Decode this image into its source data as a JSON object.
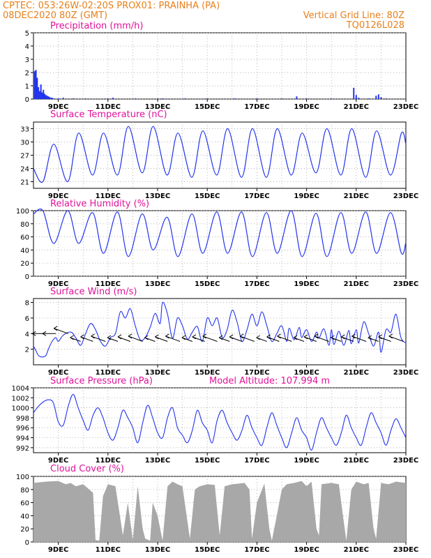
{
  "header": {
    "line1_left": "CPTEC:   053:26W-02:20S   PROX01: PRAINHA (PA)",
    "line2_left": "08DEC2020 80Z (GMT)",
    "line2_right": "Vertical Grid Line: 80Z",
    "line3_right": "TQ0126L028"
  },
  "colors": {
    "header": "#e8801a",
    "title": "#e0139a",
    "series": "#2233ee",
    "cloud": "#a8a8a8",
    "grid": "#999999"
  },
  "chart_data": [
    {
      "id": "precip",
      "type": "bar",
      "title": "Precipitation (mm/h)",
      "x_tick_labels": [
        "9DEC",
        "11DEC",
        "13DEC",
        "15DEC",
        "17DEC",
        "19DEC",
        "21DEC",
        "23DEC"
      ],
      "y_ticks": [
        0,
        1,
        2,
        3,
        4,
        5
      ],
      "ylim": [
        0,
        5
      ],
      "grid": true,
      "bars": [
        [
          0.05,
          2.1
        ],
        [
          0.1,
          2.2
        ],
        [
          0.15,
          1.6
        ],
        [
          0.2,
          0.9
        ],
        [
          0.25,
          0.6
        ],
        [
          0.3,
          1.1
        ],
        [
          0.35,
          0.5
        ],
        [
          0.4,
          0.7
        ],
        [
          0.45,
          0.4
        ],
        [
          0.5,
          0.3
        ],
        [
          0.55,
          0.25
        ],
        [
          0.6,
          0.2
        ],
        [
          0.65,
          0.15
        ],
        [
          0.7,
          0.1
        ],
        [
          0.75,
          0.1
        ],
        [
          0.8,
          0.05
        ],
        [
          1.0,
          0.05
        ],
        [
          1.2,
          0.1
        ],
        [
          1.6,
          0.05
        ],
        [
          2.1,
          0.05
        ],
        [
          3.0,
          0.05
        ],
        [
          3.2,
          0.1
        ],
        [
          4.1,
          0.05
        ],
        [
          5.0,
          0.05
        ],
        [
          5.2,
          0.05
        ],
        [
          6.1,
          0.05
        ],
        [
          7.0,
          0.05
        ],
        [
          8.1,
          0.05
        ],
        [
          9.0,
          0.05
        ],
        [
          10.0,
          0.05
        ],
        [
          10.6,
          0.2
        ],
        [
          11.0,
          0.05
        ],
        [
          12.0,
          0.05
        ],
        [
          12.9,
          0.85
        ],
        [
          13.0,
          0.3
        ],
        [
          13.1,
          0.1
        ],
        [
          13.5,
          0.05
        ],
        [
          13.8,
          0.25
        ],
        [
          13.9,
          0.35
        ],
        [
          14.0,
          0.15
        ],
        [
          14.2,
          0.05
        ]
      ]
    },
    {
      "id": "temp",
      "type": "line",
      "title": "Surface Temperature (nC)",
      "x_tick_labels": [
        "9DEC",
        "11DEC",
        "13DEC",
        "15DEC",
        "17DEC",
        "19DEC",
        "21DEC",
        "23DEC"
      ],
      "y_ticks": [
        21,
        24,
        27,
        30,
        33
      ],
      "ylim": [
        19.5,
        34.5
      ],
      "grid": true,
      "pattern": {
        "period_days": 1,
        "min_hour_frac": 0.38,
        "max_hour_frac": 0.82
      },
      "daily": [
        [
          21,
          29.5
        ],
        [
          21,
          32
        ],
        [
          22.5,
          32
        ],
        [
          22.5,
          33.5
        ],
        [
          23,
          33.5
        ],
        [
          22.5,
          32
        ],
        [
          22,
          32.5
        ],
        [
          22.5,
          33
        ],
        [
          22,
          33
        ],
        [
          22,
          33
        ],
        [
          22.5,
          32
        ],
        [
          23,
          33
        ],
        [
          22.5,
          33
        ],
        [
          22,
          32.5
        ],
        [
          22.5,
          32
        ]
      ],
      "start_value": 24,
      "end_value": 29.5
    },
    {
      "id": "rh",
      "type": "line",
      "title": "Relative Humidity (%)",
      "x_tick_labels": [
        "9DEC",
        "11DEC",
        "13DEC",
        "15DEC",
        "17DEC",
        "19DEC",
        "21DEC",
        "23DEC"
      ],
      "y_ticks": [
        0,
        20,
        40,
        60,
        80,
        100
      ],
      "ylim": [
        0,
        100
      ],
      "grid": true,
      "daily": [
        [
          100,
          50
        ],
        [
          100,
          50
        ],
        [
          97,
          35
        ],
        [
          98,
          30
        ],
        [
          95,
          40
        ],
        [
          90,
          30
        ],
        [
          95,
          35
        ],
        [
          98,
          35
        ],
        [
          98,
          30
        ],
        [
          97,
          35
        ],
        [
          100,
          30
        ],
        [
          96,
          30
        ],
        [
          97,
          35
        ],
        [
          98,
          35
        ],
        [
          97,
          35
        ]
      ],
      "start_value": 95,
      "end_value": 52
    },
    {
      "id": "wind",
      "type": "line",
      "title": "Surface Wind (m/s)",
      "x_tick_labels": [
        "9DEC",
        "11DEC",
        "13DEC",
        "15DEC",
        "17DEC",
        "19DEC",
        "21DEC",
        "23DEC"
      ],
      "y_ticks": [
        2,
        4,
        6,
        8
      ],
      "ylim": [
        0,
        8.5
      ],
      "grid": true,
      "points": [
        [
          0,
          2.4
        ],
        [
          0.1,
          1.8
        ],
        [
          0.2,
          1.2
        ],
        [
          0.35,
          1.0
        ],
        [
          0.5,
          1.2
        ],
        [
          0.6,
          2.0
        ],
        [
          0.75,
          3.0
        ],
        [
          0.9,
          3.5
        ],
        [
          1.0,
          3.0
        ],
        [
          1.2,
          3.8
        ],
        [
          1.5,
          4.2
        ],
        [
          1.7,
          3.5
        ],
        [
          1.9,
          2.5
        ],
        [
          2.1,
          4.0
        ],
        [
          2.3,
          5.3
        ],
        [
          2.5,
          4.5
        ],
        [
          2.7,
          3.0
        ],
        [
          2.9,
          2.4
        ],
        [
          3.1,
          3.5
        ],
        [
          3.3,
          4.0
        ],
        [
          3.5,
          6.8
        ],
        [
          3.7,
          6.0
        ],
        [
          3.9,
          7.2
        ],
        [
          4.1,
          5.0
        ],
        [
          4.3,
          3.2
        ],
        [
          4.5,
          3.5
        ],
        [
          4.7,
          4.8
        ],
        [
          4.9,
          6.6
        ],
        [
          5.1,
          5.3
        ],
        [
          5.2,
          8.0
        ],
        [
          5.4,
          6.5
        ],
        [
          5.6,
          3.4
        ],
        [
          5.8,
          6.0
        ],
        [
          6.0,
          5.0
        ],
        [
          6.2,
          3.3
        ],
        [
          6.4,
          4.2
        ],
        [
          6.6,
          4.9
        ],
        [
          6.8,
          3.0
        ],
        [
          7.0,
          6.0
        ],
        [
          7.2,
          5.0
        ],
        [
          7.4,
          6.0
        ],
        [
          7.6,
          3.5
        ],
        [
          7.8,
          4.5
        ],
        [
          8.0,
          7.0
        ],
        [
          8.2,
          5.5
        ],
        [
          8.4,
          3.0
        ],
        [
          8.6,
          4.5
        ],
        [
          8.8,
          6.5
        ],
        [
          9.0,
          5.0
        ],
        [
          9.2,
          6.8
        ],
        [
          9.4,
          5.0
        ],
        [
          9.6,
          3.0
        ],
        [
          9.8,
          4.0
        ],
        [
          10.0,
          5.0
        ],
        [
          10.2,
          3.0
        ],
        [
          10.3,
          4.7
        ],
        [
          10.5,
          3.2
        ],
        [
          10.7,
          4.8
        ],
        [
          10.8,
          3.5
        ],
        [
          11.0,
          4.5
        ],
        [
          11.2,
          3.0
        ],
        [
          11.4,
          4.2
        ],
        [
          11.5,
          3.4
        ],
        [
          11.7,
          4.6
        ],
        [
          11.9,
          2.5
        ],
        [
          12.0,
          4.5
        ],
        [
          12.1,
          2.6
        ],
        [
          12.3,
          4.3
        ],
        [
          12.5,
          2.5
        ],
        [
          12.7,
          4.4
        ],
        [
          12.8,
          2.7
        ],
        [
          13.0,
          4.5
        ],
        [
          13.1,
          2.8
        ],
        [
          13.3,
          5.5
        ],
        [
          13.5,
          4.0
        ],
        [
          13.7,
          2.4
        ],
        [
          13.9,
          4.2
        ],
        [
          14.0,
          1.6
        ],
        [
          14.2,
          4.5
        ],
        [
          14.4,
          4.2
        ],
        [
          14.6,
          6.5
        ],
        [
          14.8,
          3.5
        ],
        [
          15.0,
          2.8
        ]
      ]
    },
    {
      "id": "pres",
      "type": "line",
      "title": "Surface Pressure (hPa)",
      "subtitle": "Model Altitude: 107.994 m",
      "x_tick_labels": [
        "9DEC",
        "11DEC",
        "13DEC",
        "15DEC",
        "17DEC",
        "19DEC",
        "21DEC",
        "23DEC"
      ],
      "y_ticks": [
        992,
        994,
        996,
        998,
        1000,
        1002,
        1004
      ],
      "ylim": [
        991,
        1004
      ],
      "grid": true,
      "points": [
        [
          0,
          999
        ],
        [
          0.2,
          1000.3
        ],
        [
          0.4,
          1001.2
        ],
        [
          0.6,
          1001.6
        ],
        [
          0.8,
          1001
        ],
        [
          1.0,
          997.2
        ],
        [
          1.2,
          996.5
        ],
        [
          1.4,
          1000.3
        ],
        [
          1.6,
          1002.7
        ],
        [
          1.8,
          1000
        ],
        [
          2.0,
          997.5
        ],
        [
          2.2,
          995.5
        ],
        [
          2.4,
          998.5
        ],
        [
          2.6,
          1000
        ],
        [
          2.8,
          998
        ],
        [
          3.0,
          995
        ],
        [
          3.2,
          993.5
        ],
        [
          3.4,
          996
        ],
        [
          3.6,
          999.5
        ],
        [
          3.8,
          998
        ],
        [
          4.0,
          996
        ],
        [
          4.2,
          993
        ],
        [
          4.4,
          997
        ],
        [
          4.6,
          1000.5
        ],
        [
          4.8,
          998
        ],
        [
          5.0,
          995
        ],
        [
          5.2,
          994
        ],
        [
          5.4,
          998
        ],
        [
          5.6,
          1000
        ],
        [
          5.8,
          996
        ],
        [
          6.0,
          994.5
        ],
        [
          6.2,
          993
        ],
        [
          6.4,
          995.5
        ],
        [
          6.6,
          999.5
        ],
        [
          6.8,
          997
        ],
        [
          7.0,
          995.5
        ],
        [
          7.2,
          993
        ],
        [
          7.4,
          997.5
        ],
        [
          7.6,
          999.5
        ],
        [
          7.8,
          997
        ],
        [
          8.0,
          995
        ],
        [
          8.2,
          993.5
        ],
        [
          8.4,
          995.5
        ],
        [
          8.6,
          998.5
        ],
        [
          8.8,
          996
        ],
        [
          9.0,
          994
        ],
        [
          9.2,
          992.5
        ],
        [
          9.4,
          996
        ],
        [
          9.6,
          999
        ],
        [
          9.8,
          996.5
        ],
        [
          10.0,
          994
        ],
        [
          10.2,
          992
        ],
        [
          10.4,
          995
        ],
        [
          10.6,
          998
        ],
        [
          10.8,
          995.5
        ],
        [
          11.0,
          994
        ],
        [
          11.2,
          991.5
        ],
        [
          11.4,
          995
        ],
        [
          11.6,
          998
        ],
        [
          11.8,
          996
        ],
        [
          12.0,
          994
        ],
        [
          12.2,
          992.5
        ],
        [
          12.4,
          995
        ],
        [
          12.6,
          998.5
        ],
        [
          12.8,
          996
        ],
        [
          13.0,
          994
        ],
        [
          13.2,
          992.5
        ],
        [
          13.4,
          996
        ],
        [
          13.6,
          999
        ],
        [
          13.8,
          997
        ],
        [
          14.0,
          995
        ],
        [
          14.2,
          992.5
        ],
        [
          14.4,
          995.5
        ],
        [
          14.6,
          997.8
        ],
        [
          14.8,
          996
        ],
        [
          15.0,
          994
        ]
      ]
    },
    {
      "id": "cloud",
      "type": "area",
      "title": "Cloud Cover (%)",
      "x_tick_labels": [
        "9DEC",
        "11DEC",
        "13DEC",
        "15DEC",
        "17DEC",
        "19DEC",
        "21DEC",
        "23DEC"
      ],
      "y_ticks": [
        0,
        20,
        40,
        60,
        80,
        100
      ],
      "ylim": [
        0,
        100
      ],
      "grid": true,
      "points": [
        [
          0,
          90
        ],
        [
          0.5,
          92
        ],
        [
          1.0,
          93
        ],
        [
          1.3,
          88
        ],
        [
          1.5,
          90
        ],
        [
          1.7,
          85
        ],
        [
          2.0,
          88
        ],
        [
          2.4,
          75
        ],
        [
          2.5,
          3
        ],
        [
          2.65,
          2
        ],
        [
          2.8,
          70
        ],
        [
          3.0,
          88
        ],
        [
          3.3,
          85
        ],
        [
          3.6,
          10
        ],
        [
          3.8,
          60
        ],
        [
          4.0,
          3
        ],
        [
          4.2,
          85
        ],
        [
          4.4,
          20
        ],
        [
          4.5,
          5
        ],
        [
          4.7,
          2
        ],
        [
          4.8,
          60
        ],
        [
          5.0,
          40
        ],
        [
          5.2,
          2
        ],
        [
          5.4,
          85
        ],
        [
          5.6,
          92
        ],
        [
          5.8,
          88
        ],
        [
          6.0,
          85
        ],
        [
          6.3,
          5
        ],
        [
          6.5,
          80
        ],
        [
          6.7,
          85
        ],
        [
          7.0,
          88
        ],
        [
          7.3,
          87
        ],
        [
          7.5,
          10
        ],
        [
          7.7,
          85
        ],
        [
          8.0,
          88
        ],
        [
          8.3,
          89
        ],
        [
          8.5,
          90
        ],
        [
          8.7,
          80
        ],
        [
          8.8,
          5
        ],
        [
          9.0,
          60
        ],
        [
          9.3,
          89
        ],
        [
          9.5,
          20
        ],
        [
          9.6,
          2
        ],
        [
          9.8,
          40
        ],
        [
          10.0,
          80
        ],
        [
          10.2,
          88
        ],
        [
          10.5,
          90
        ],
        [
          10.8,
          93
        ],
        [
          11.0,
          85
        ],
        [
          11.2,
          92
        ],
        [
          11.4,
          20
        ],
        [
          11.5,
          10
        ],
        [
          11.6,
          88
        ],
        [
          12.0,
          90
        ],
        [
          12.3,
          88
        ],
        [
          12.5,
          30
        ],
        [
          12.6,
          2
        ],
        [
          12.8,
          80
        ],
        [
          13.0,
          92
        ],
        [
          13.3,
          88
        ],
        [
          13.5,
          90
        ],
        [
          13.7,
          20
        ],
        [
          13.8,
          5
        ],
        [
          14.0,
          90
        ],
        [
          14.3,
          88
        ],
        [
          14.6,
          92
        ],
        [
          15.0,
          90
        ]
      ]
    }
  ]
}
